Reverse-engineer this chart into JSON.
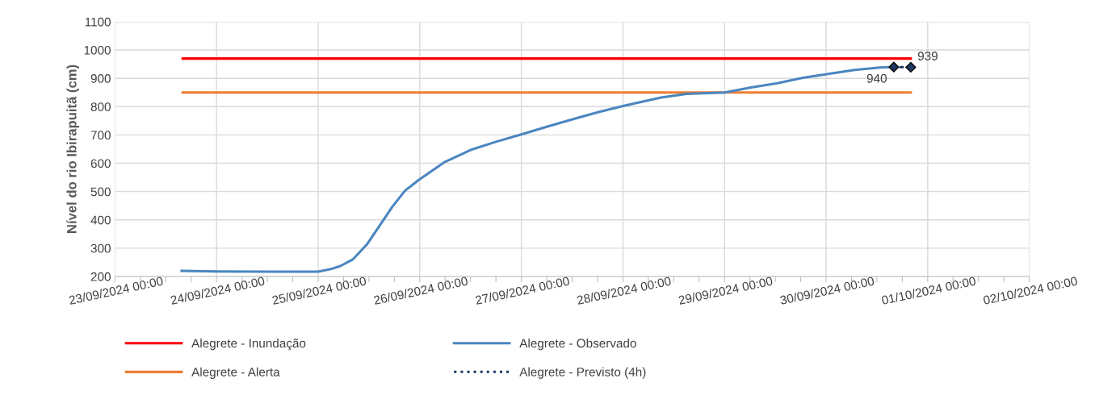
{
  "chart_data": {
    "type": "line",
    "ylabel": "Nível do rio Ibirapuitã (cm)",
    "xlim": [
      "2024-09-23T00:00",
      "2024-10-02T00:00"
    ],
    "xticks": [
      {
        "value": "2024-09-23T00:00",
        "label": "23/09/2024 00:00"
      },
      {
        "value": "2024-09-24T00:00",
        "label": "24/09/2024 00:00"
      },
      {
        "value": "2024-09-25T00:00",
        "label": "25/09/2024 00:00"
      },
      {
        "value": "2024-09-26T00:00",
        "label": "26/09/2024 00:00"
      },
      {
        "value": "2024-09-27T00:00",
        "label": "27/09/2024 00:00"
      },
      {
        "value": "2024-09-28T00:00",
        "label": "28/09/2024 00:00"
      },
      {
        "value": "2024-09-29T00:00",
        "label": "29/09/2024 00:00"
      },
      {
        "value": "2024-09-30T00:00",
        "label": "30/09/2024 00:00"
      },
      {
        "value": "2024-10-01T00:00",
        "label": "01/10/2024 00:00"
      },
      {
        "value": "2024-10-02T00:00",
        "label": "02/10/2024 00:00"
      },
      {
        "value": "2024-09-23T06:00",
        "label": null
      },
      {
        "value": "2024-09-23T12:00",
        "label": null
      },
      {
        "value": "2024-09-23T18:00",
        "label": null
      },
      {
        "value": "2024-09-24T06:00",
        "label": null
      },
      {
        "value": "2024-09-24T12:00",
        "label": null
      },
      {
        "value": "2024-09-24T18:00",
        "label": null
      },
      {
        "value": "2024-09-25T06:00",
        "label": null
      },
      {
        "value": "2024-09-25T12:00",
        "label": null
      },
      {
        "value": "2024-09-25T18:00",
        "label": null
      },
      {
        "value": "2024-09-26T06:00",
        "label": null
      },
      {
        "value": "2024-09-26T12:00",
        "label": null
      },
      {
        "value": "2024-09-26T18:00",
        "label": null
      },
      {
        "value": "2024-09-27T06:00",
        "label": null
      },
      {
        "value": "2024-09-27T12:00",
        "label": null
      },
      {
        "value": "2024-09-27T18:00",
        "label": null
      },
      {
        "value": "2024-09-28T06:00",
        "label": null
      },
      {
        "value": "2024-09-28T12:00",
        "label": null
      },
      {
        "value": "2024-09-28T18:00",
        "label": null
      },
      {
        "value": "2024-09-29T06:00",
        "label": null
      },
      {
        "value": "2024-09-29T12:00",
        "label": null
      },
      {
        "value": "2024-09-29T18:00",
        "label": null
      },
      {
        "value": "2024-09-30T06:00",
        "label": null
      },
      {
        "value": "2024-09-30T12:00",
        "label": null
      },
      {
        "value": "2024-09-30T18:00",
        "label": null
      },
      {
        "value": "2024-10-01T06:00",
        "label": null
      },
      {
        "value": "2024-10-01T12:00",
        "label": null
      },
      {
        "value": "2024-10-01T18:00",
        "label": null
      }
    ],
    "ylim": [
      200,
      1100
    ],
    "yticks": [
      200,
      300,
      400,
      500,
      600,
      700,
      800,
      900,
      1000,
      1100
    ],
    "grid": true,
    "legend": "bottom",
    "series": [
      {
        "name": "Alegrete - Inundação",
        "color": "#ff0000",
        "line_style": "solid",
        "marker": "none",
        "x": [
          "2024-09-23T16:00",
          "2024-09-30T20:00"
        ],
        "values": [
          970,
          970
        ]
      },
      {
        "name": "Alegrete - Alerta",
        "color": "#ed7d31",
        "line_style": "solid",
        "marker": "none",
        "x": [
          "2024-09-23T16:00",
          "2024-09-30T20:00"
        ],
        "values": [
          850,
          850
        ]
      },
      {
        "name": "Alegrete - Observado",
        "color": "#4a86c0",
        "line_style": "solid",
        "marker": "none",
        "x": [
          "2024-09-23T15:45",
          "2024-09-24T00:00",
          "2024-09-24T12:00",
          "2024-09-25T00:00",
          "2024-09-25T03:00",
          "2024-09-25T05:15",
          "2024-09-25T08:15",
          "2024-09-25T11:30",
          "2024-09-25T14:30",
          "2024-09-25T17:30",
          "2024-09-25T20:30",
          "2024-09-25T23:45",
          "2024-09-26T05:45",
          "2024-09-26T12:00",
          "2024-09-26T18:00",
          "2024-09-27T00:00",
          "2024-09-27T06:00",
          "2024-09-27T12:15",
          "2024-09-27T18:15",
          "2024-09-28T00:00",
          "2024-09-28T03:00",
          "2024-09-28T09:00",
          "2024-09-28T15:00",
          "2024-09-29T00:00",
          "2024-09-29T06:15",
          "2024-09-29T12:30",
          "2024-09-29T18:30",
          "2024-09-30T00:45",
          "2024-09-30T06:45",
          "2024-09-30T12:45",
          "2024-09-30T16:00"
        ],
        "values": [
          220,
          218,
          217,
          217,
          226,
          237,
          261,
          313,
          379,
          446,
          503,
          541,
          603,
          647,
          676,
          702,
          729,
          756,
          781,
          802,
          812,
          832,
          845,
          850,
          868,
          883,
          902,
          916,
          930,
          938,
          940
        ]
      },
      {
        "name": "Alegrete - Previsto (4h)",
        "color": "#1f3864",
        "line_style": "dotted",
        "marker": "diamond",
        "x": [
          "2024-09-30T16:00",
          "2024-09-30T20:00"
        ],
        "values": [
          940,
          939
        ],
        "value_labels": [
          "940",
          "939"
        ]
      }
    ]
  }
}
